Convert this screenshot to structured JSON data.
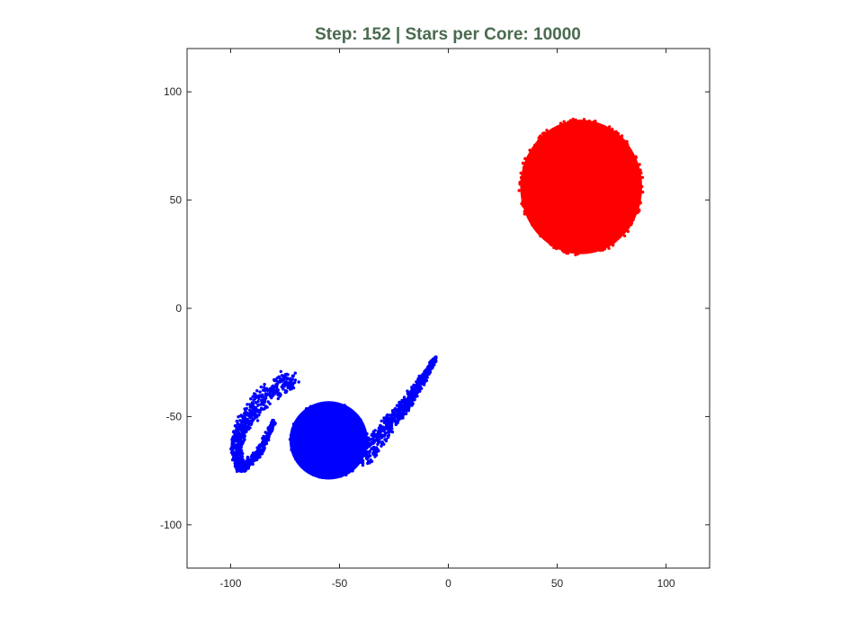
{
  "chart_data": {
    "type": "scatter",
    "title": "Step: 152 | Stars per Core: 10000",
    "xlabel": "",
    "ylabel": "",
    "xlim": [
      -120,
      120
    ],
    "ylim": [
      -120,
      120
    ],
    "xticks": [
      -100,
      -50,
      0,
      50,
      100
    ],
    "yticks": [
      -100,
      -50,
      0,
      50,
      100
    ],
    "xtick_labels": [
      "-100",
      "-50",
      "0",
      "50",
      "100"
    ],
    "ytick_labels": [
      "-100",
      "-50",
      "0",
      "50",
      "100"
    ],
    "grid": false,
    "legend": "none",
    "series": [
      {
        "color": "#ff0000",
        "shape": "disk",
        "center": [
          61,
          56
        ],
        "radius_x": 28,
        "radius_y": 31
      },
      {
        "color": "#0000ff",
        "shape": "spiral-galaxy",
        "core_center": [
          -55,
          -61
        ],
        "core_radius": 18,
        "left_arm_points": [
          [
            -72,
            -32
          ],
          [
            -86,
            -42
          ],
          [
            -95,
            -55
          ],
          [
            -98,
            -66
          ],
          [
            -95,
            -74
          ],
          [
            -87,
            -67
          ],
          [
            -80,
            -52
          ]
        ],
        "right_arm_points": [
          [
            -40,
            -70
          ],
          [
            -30,
            -57
          ],
          [
            -20,
            -45
          ],
          [
            -12,
            -33
          ],
          [
            -6,
            -23
          ]
        ]
      }
    ]
  }
}
